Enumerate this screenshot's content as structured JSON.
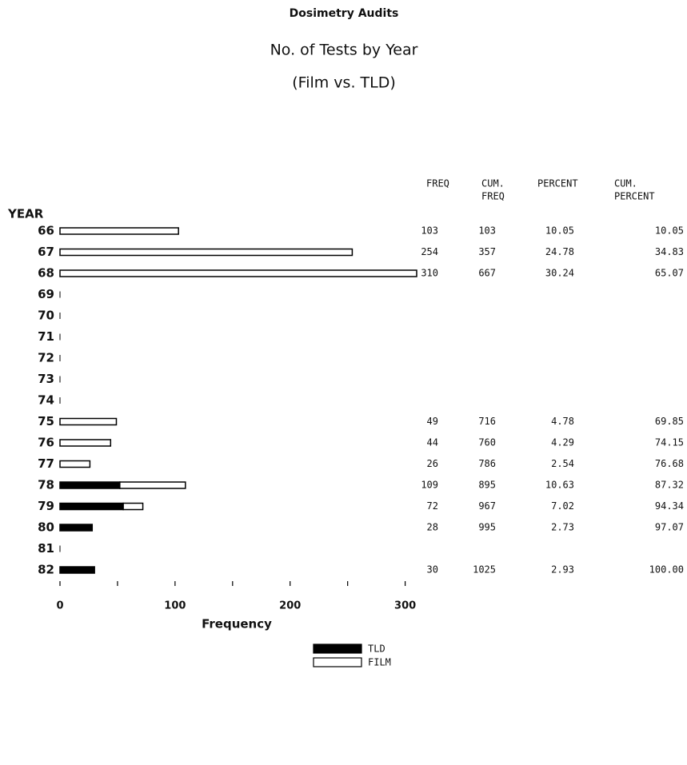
{
  "chart_data": {
    "type": "bar",
    "orientation": "horizontal",
    "stacked": true,
    "title": "Dosimetry Audits",
    "subtitle": "No. of Tests by Year",
    "subtitle2": "(Film vs. TLD)",
    "y_label": "YEAR",
    "x_label": "Frequency",
    "categories": [
      "66",
      "67",
      "68",
      "69",
      "70",
      "71",
      "72",
      "73",
      "74",
      "75",
      "76",
      "77",
      "78",
      "79",
      "80",
      "81",
      "82"
    ],
    "series": [
      {
        "name": "TLD",
        "color": "#000000",
        "values": [
          0,
          0,
          0,
          0,
          0,
          0,
          0,
          0,
          0,
          0,
          0,
          0,
          52,
          55,
          28,
          0,
          30
        ]
      },
      {
        "name": "FILM",
        "color": "#ffffff",
        "values": [
          103,
          254,
          310,
          0,
          0,
          0,
          0,
          0,
          0,
          49,
          44,
          26,
          57,
          17,
          0,
          0,
          0
        ]
      }
    ],
    "xlim": [
      0,
      310
    ],
    "xticks": [
      0,
      50,
      100,
      150,
      200,
      250,
      300
    ],
    "xtick_labels": [
      0,
      100,
      200,
      300
    ],
    "legend": "bottom",
    "table": {
      "headers": [
        [
          "FREQ"
        ],
        [
          "CUM.",
          "FREQ"
        ],
        [
          "PERCENT"
        ],
        [
          "CUM.",
          "PERCENT"
        ]
      ],
      "rows": [
        [
          "103",
          "103",
          "10.05",
          "10.05"
        ],
        [
          "254",
          "357",
          "24.78",
          "34.83"
        ],
        [
          "310",
          "667",
          "30.24",
          "65.07"
        ],
        null,
        null,
        null,
        null,
        null,
        null,
        [
          "49",
          "716",
          "4.78",
          "69.85"
        ],
        [
          "44",
          "760",
          "4.29",
          "74.15"
        ],
        [
          "26",
          "786",
          "2.54",
          "76.68"
        ],
        [
          "109",
          "895",
          "10.63",
          "87.32"
        ],
        [
          "72",
          "967",
          "7.02",
          "94.34"
        ],
        [
          "28",
          "995",
          "2.73",
          "97.07"
        ],
        null,
        [
          "30",
          "1025",
          "2.93",
          "100.00"
        ]
      ]
    }
  }
}
